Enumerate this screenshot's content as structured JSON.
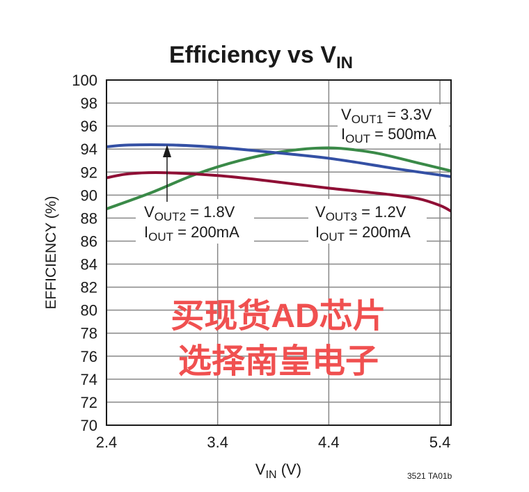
{
  "chart_data": {
    "type": "line",
    "title": "Efficiency vs V",
    "title_sub": "IN",
    "xlabel": "V",
    "xlabel_sub": "IN",
    "xlabel_suffix": " (V)",
    "ylabel": "EFFICIENCY (%)",
    "xlim": [
      2.4,
      5.5
    ],
    "ylim": [
      70,
      100
    ],
    "xticks": [
      2.4,
      3.4,
      4.4,
      5.4
    ],
    "xtick_labels": [
      "2.4",
      "3.4",
      "4.4",
      "5.4"
    ],
    "yticks": [
      70,
      72,
      74,
      76,
      78,
      80,
      82,
      84,
      86,
      88,
      90,
      92,
      94,
      96,
      98,
      100
    ],
    "ytick_labels": [
      "70",
      "72",
      "74",
      "76",
      "78",
      "80",
      "82",
      "84",
      "86",
      "88",
      "90",
      "92",
      "94",
      "96",
      "98",
      "100"
    ],
    "grid": true,
    "series": [
      {
        "name": "VOUT1 = 3.3V, IOUT = 500mA",
        "color": "#3a8a48",
        "x": [
          2.4,
          2.8,
          3.2,
          3.6,
          4.0,
          4.4,
          4.8,
          5.2,
          5.5
        ],
        "y": [
          88.8,
          90.2,
          91.8,
          93.0,
          93.8,
          94.1,
          93.7,
          92.8,
          92.1
        ]
      },
      {
        "name": "VOUT2 = 1.8V, IOUT = 200mA",
        "color": "#3450a4",
        "x": [
          2.4,
          2.6,
          3.0,
          3.4,
          3.8,
          4.4,
          5.0,
          5.5
        ],
        "y": [
          94.2,
          94.35,
          94.35,
          94.15,
          93.8,
          93.2,
          92.3,
          91.6
        ]
      },
      {
        "name": "VOUT3 = 1.2V, IOUT = 200mA",
        "color": "#8f0f35",
        "x": [
          2.4,
          2.6,
          2.9,
          3.4,
          3.8,
          4.4,
          4.9,
          5.2,
          5.4,
          5.5
        ],
        "y": [
          91.5,
          91.85,
          91.95,
          91.7,
          91.3,
          90.6,
          90.1,
          89.7,
          89.1,
          88.6
        ]
      }
    ],
    "annotations": {
      "vout1": {
        "v": "V",
        "vsub": "OUT1",
        "vval": " = 3.3V",
        "i": "I",
        "isub": "OUT",
        "ival": " = 500mA"
      },
      "vout2": {
        "v": "V",
        "vsub": "OUT2",
        "vval": " = 1.8V",
        "i": "I",
        "isub": "OUT",
        "ival": " = 200mA"
      },
      "vout3": {
        "v": "V",
        "vsub": "OUT3",
        "vval": " = 1.2V",
        "i": "I",
        "isub": "OUT",
        "ival": " = 200mA"
      }
    },
    "figure_id": "3521 TA01b",
    "watermark": "买现货AD芯片选择南皇电子"
  }
}
